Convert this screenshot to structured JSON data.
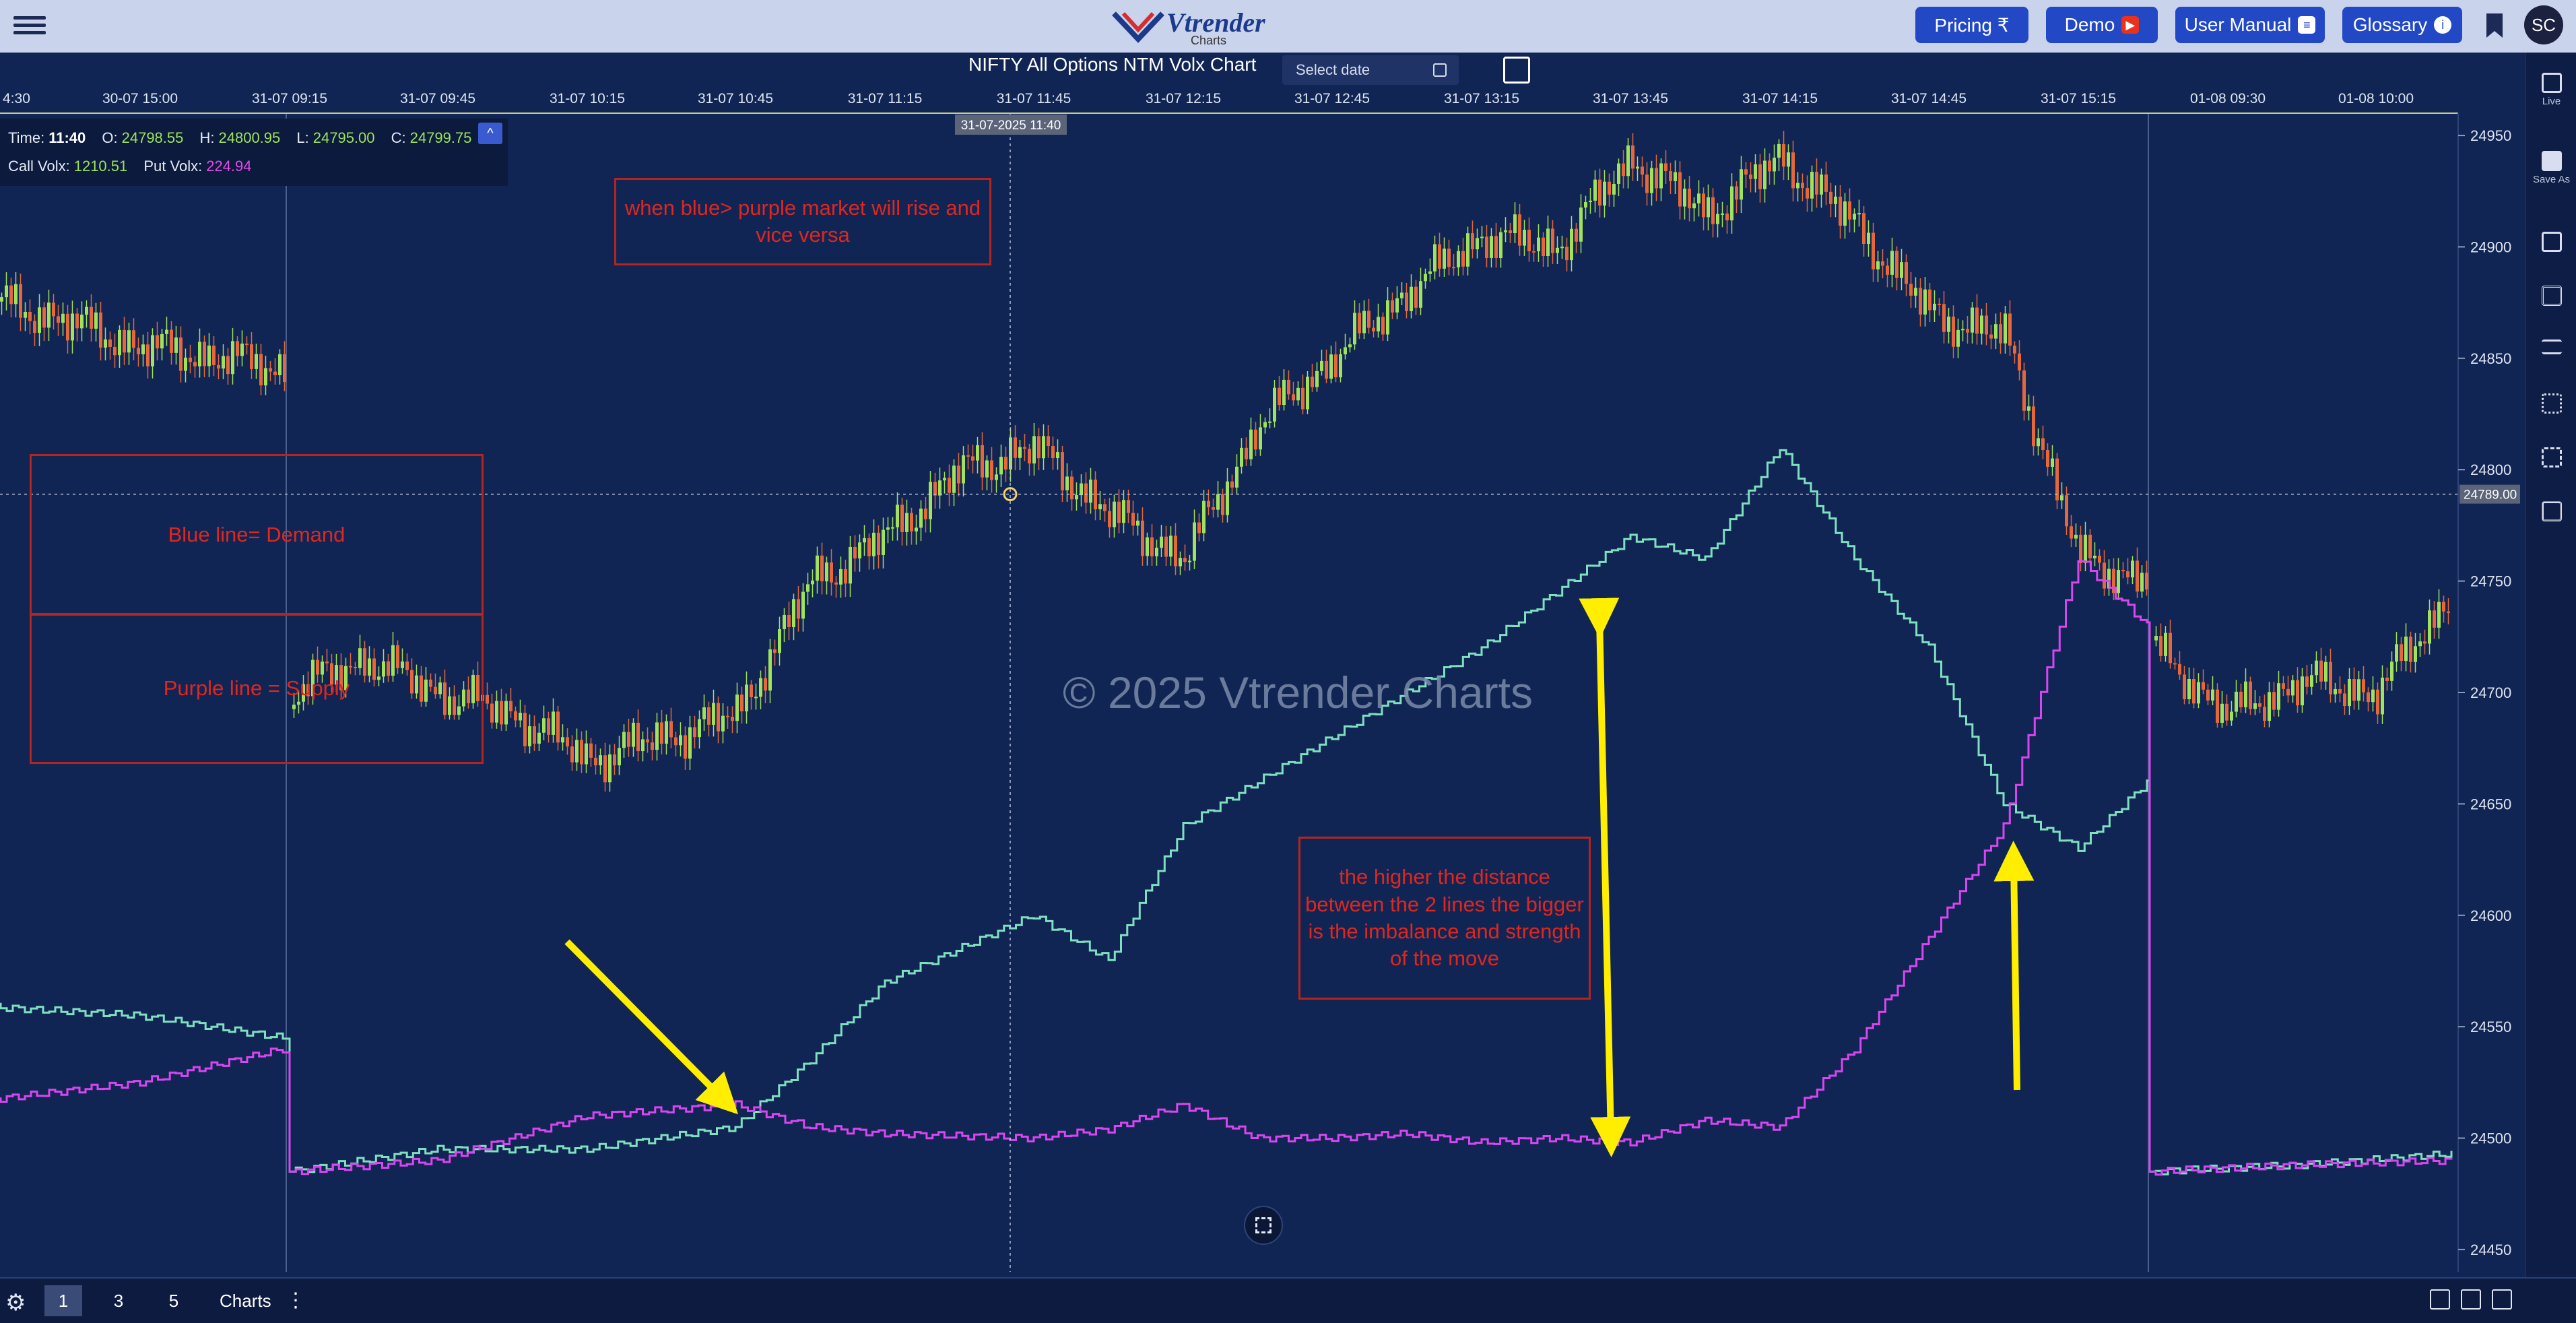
{
  "header": {
    "logo_text": "Vtrender",
    "logo_sub": "Charts",
    "pricing_label": "Pricing ₹",
    "demo_label": "Demo",
    "manual_label": "User Manual",
    "glossary_label": "Glossary",
    "avatar_initials": "SC"
  },
  "sidebar": {
    "live_label": "Live",
    "save_label": "Save As"
  },
  "chart_header": {
    "title": "NIFTY All Options NTM Volx Chart",
    "date_placeholder": "Select date"
  },
  "ohlc": {
    "time_label": "Time:",
    "time": "11:40",
    "o_label": "O:",
    "open": "24798.55",
    "h_label": "H:",
    "high": "24800.95",
    "l_label": "L:",
    "low": "24795.00",
    "c_label": "C:",
    "close": "24799.75",
    "call_label": "Call Volx:",
    "call_volx": "1210.51",
    "put_label": "Put Volx:",
    "put_volx": "224.94",
    "collapse_icon": "^"
  },
  "annotations": {
    "note1": "when blue> purple market will rise and vice versa",
    "note2": "Blue line= Demand",
    "note3": "Purple line = Supply",
    "note4": "the higher the distance between the 2 lines the bigger is the imbalance and strength of the move"
  },
  "watermark": "© 2025 Vtrender Charts",
  "bottom": {
    "tabs": [
      "1",
      "3",
      "5"
    ],
    "charts_label": "Charts",
    "kebab": "⋮",
    "settings": "⚙"
  },
  "colors": {
    "background": "#112554",
    "call_line": "#7fe0c0",
    "put_line": "#d946ef",
    "candle_up": "#9fe25b",
    "candle_down": "#e5673a",
    "annotation": "#e0261e",
    "arrow": "#ffee00"
  },
  "chart_data": {
    "type": "line",
    "title": "NIFTY All Options NTM Volx Chart",
    "x_ticks": [
      "4:30",
      "30-07 15:00",
      "31-07 09:15",
      "31-07 09:45",
      "31-07 10:15",
      "31-07 10:45",
      "31-07 11:15",
      "31-07 11:45",
      "31-07 12:15",
      "31-07 12:45",
      "31-07 13:15",
      "31-07 13:45",
      "31-07 14:15",
      "31-07 14:45",
      "31-07 15:15",
      "01-08 09:30",
      "01-08 10:00"
    ],
    "y_ticks": [
      24450,
      24500,
      24550,
      24600,
      24650,
      24700,
      24750,
      24800,
      24850,
      24900,
      24950
    ],
    "ylim": [
      24440,
      24960
    ],
    "crosshair": {
      "x_label": "31-07-2025 11:40",
      "y_value": "24789.00"
    },
    "price_series": {
      "name": "NIFTY",
      "x": [
        "30-07 14:30",
        "30-07 14:45",
        "30-07 15:00",
        "30-07 15:15",
        "30-07 15:25",
        "31-07 09:15",
        "31-07 09:30",
        "31-07 09:45",
        "31-07 10:00",
        "31-07 10:15",
        "31-07 10:30",
        "31-07 10:45",
        "31-07 11:00",
        "31-07 11:15",
        "31-07 11:30",
        "31-07 11:45",
        "31-07 12:00",
        "31-07 12:15",
        "31-07 12:30",
        "31-07 12:45",
        "31-07 13:00",
        "31-07 13:15",
        "31-07 13:30",
        "31-07 13:45",
        "31-07 14:00",
        "31-07 14:15",
        "31-07 14:30",
        "31-07 14:45",
        "31-07 15:00",
        "31-07 15:15",
        "31-07 15:25",
        "01-08 09:15",
        "01-08 09:30",
        "01-08 09:45",
        "01-08 10:00",
        "01-08 10:15"
      ],
      "values": [
        24880,
        24870,
        24855,
        24850,
        24845,
        24700,
        24715,
        24700,
        24690,
        24670,
        24680,
        24690,
        24750,
        24770,
        24800,
        24810,
        24780,
        24760,
        24820,
        24850,
        24880,
        24905,
        24900,
        24940,
        24915,
        24940,
        24910,
        24870,
        24860,
        24760,
        24750,
        24720,
        24690,
        24705,
        24700,
        24745
      ]
    },
    "series": [
      {
        "name": "Call Volx",
        "x": [
          "30-07 14:30",
          "30-07 15:00",
          "30-07 15:25",
          "31-07 09:15",
          "31-07 09:45",
          "31-07 10:15",
          "31-07 10:45",
          "31-07 11:00",
          "31-07 11:15",
          "31-07 11:45",
          "31-07 12:00",
          "31-07 12:15",
          "31-07 12:30",
          "31-07 12:45",
          "31-07 13:00",
          "31-07 13:15",
          "31-07 13:30",
          "31-07 13:45",
          "31-07 14:00",
          "31-07 14:15",
          "31-07 14:30",
          "31-07 14:45",
          "31-07 15:00",
          "31-07 15:15",
          "31-07 15:25",
          "01-08 09:15",
          "01-08 09:45",
          "01-08 10:15"
        ],
        "values": [
          24560,
          24555,
          24545,
          24485,
          24495,
          24495,
          24505,
          24535,
          24570,
          24600,
          24580,
          24640,
          24660,
          24680,
          24700,
          24720,
          24745,
          24770,
          24760,
          24810,
          24760,
          24720,
          24650,
          24630,
          24660,
          24485,
          24488,
          24493
        ]
      },
      {
        "name": "Put Volx",
        "x": [
          "30-07 14:30",
          "30-07 15:00",
          "30-07 15:25",
          "31-07 09:15",
          "31-07 09:45",
          "31-07 10:15",
          "31-07 10:45",
          "31-07 11:00",
          "31-07 11:15",
          "31-07 11:45",
          "31-07 12:00",
          "31-07 12:15",
          "31-07 12:30",
          "31-07 12:45",
          "31-07 13:00",
          "31-07 13:15",
          "31-07 13:30",
          "31-07 13:45",
          "31-07 14:00",
          "31-07 14:15",
          "31-07 14:30",
          "31-07 14:45",
          "31-07 15:00",
          "31-07 15:15",
          "31-07 15:25",
          "01-08 09:15",
          "01-08 09:45",
          "01-08 10:15"
        ],
        "values": [
          24515,
          24525,
          24540,
          24485,
          24490,
          24510,
          24515,
          24505,
          24502,
          24500,
          24504,
          24515,
          24500,
          24500,
          24502,
          24498,
          24500,
          24498,
          24508,
          24505,
          24540,
          24590,
          24640,
          24760,
          24730,
          24485,
          24488,
          24490
        ]
      }
    ]
  }
}
